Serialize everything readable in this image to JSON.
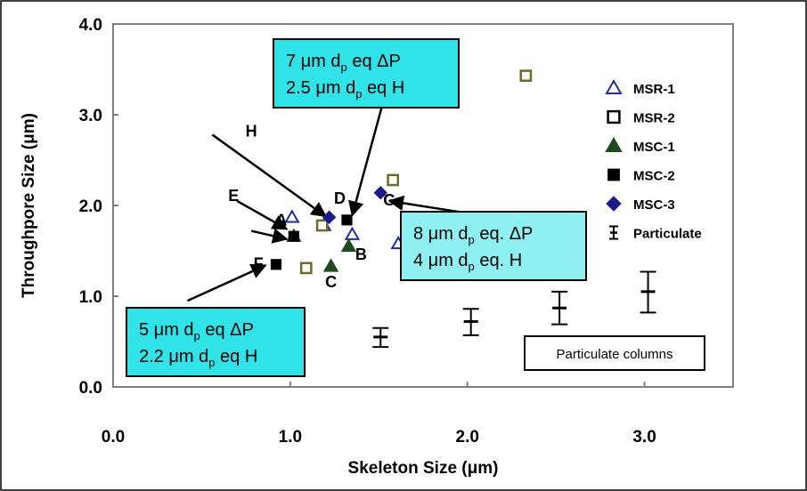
{
  "chart_data": {
    "type": "scatter",
    "xlabel": "Skeleton Size (μm)",
    "ylabel": "Throughpore Size (μm)",
    "xlim": [
      0,
      3.5
    ],
    "ylim": [
      0,
      4.0
    ],
    "x_ticks": [
      "0.0",
      "1.0",
      "2.0",
      "3.0"
    ],
    "y_ticks": [
      "0.0",
      "1.0",
      "2.0",
      "3.0",
      "4.0"
    ],
    "legend_position": "right",
    "series": [
      {
        "name": "MSR-1",
        "marker": "triangle-open",
        "color": "#1f2f9a",
        "points": [
          {
            "x": 1.01,
            "y": 1.87
          },
          {
            "x": 1.19,
            "y": 1.78
          },
          {
            "x": 1.35,
            "y": 1.68
          },
          {
            "x": 1.61,
            "y": 1.58
          }
        ]
      },
      {
        "name": "MSR-2",
        "marker": "square-open",
        "color": "#6b6b2a",
        "points": [
          {
            "x": 1.09,
            "y": 1.31
          },
          {
            "x": 1.18,
            "y": 1.78
          },
          {
            "x": 1.58,
            "y": 2.28
          },
          {
            "x": 2.33,
            "y": 3.43
          }
        ]
      },
      {
        "name": "MSC-1",
        "marker": "triangle-filled",
        "color": "#1f4a1f",
        "points": [
          {
            "x": 1.02,
            "y": 1.66
          },
          {
            "x": 1.23,
            "y": 1.33
          },
          {
            "x": 1.33,
            "y": 1.55
          }
        ]
      },
      {
        "name": "MSC-2",
        "marker": "square-filled",
        "color": "#000000",
        "points": [
          {
            "x": 0.92,
            "y": 1.35
          },
          {
            "x": 1.02,
            "y": 1.66
          },
          {
            "x": 1.32,
            "y": 1.84
          }
        ]
      },
      {
        "name": "MSC-3",
        "marker": "diamond-filled",
        "color": "#1a1a8a",
        "points": [
          {
            "x": 1.22,
            "y": 1.87
          },
          {
            "x": 1.51,
            "y": 2.14
          }
        ]
      },
      {
        "name": "Particulate",
        "marker": "errorbar",
        "color": "#000000",
        "points": [
          {
            "x": 1.51,
            "y": 0.55,
            "ylow": 0.44,
            "yhigh": 0.65
          },
          {
            "x": 2.02,
            "y": 0.72,
            "ylow": 0.57,
            "yhigh": 0.86
          },
          {
            "x": 2.52,
            "y": 0.87,
            "ylow": 0.69,
            "yhigh": 1.05
          },
          {
            "x": 3.02,
            "y": 1.05,
            "ylow": 0.82,
            "yhigh": 1.27
          }
        ]
      }
    ],
    "point_labels": [
      {
        "text": "A",
        "x": 0.95,
        "y": 1.78
      },
      {
        "text": "C",
        "x": 1.23,
        "y": 1.1
      },
      {
        "text": "D",
        "x": 1.28,
        "y": 2.02
      },
      {
        "text": "E",
        "x": 0.68,
        "y": 2.05
      },
      {
        "text": "F",
        "x": 0.82,
        "y": 1.3
      },
      {
        "text": "G",
        "x": 1.56,
        "y": 2.0
      },
      {
        "text": "H",
        "x": 0.78,
        "y": 2.76
      },
      {
        "text": "B",
        "x": 1.4,
        "y": 1.4
      }
    ],
    "annotation_boxes": [
      {
        "line1": "7 μm d",
        "sub1": "p",
        "tail1": " eq ΔP",
        "line2": "2.5 μm d",
        "sub2": "p",
        "tail2": " eq H",
        "fill": "#2fe3e8"
      },
      {
        "line1": "8 μm d",
        "sub1": "p",
        "tail1": " eq. ΔP",
        "line2": "4 μm d",
        "sub2": "p",
        "tail2": " eq. H",
        "fill": "#8ff0f2"
      },
      {
        "line1": "5 μm d",
        "sub1": "p",
        "tail1": " eq ΔP",
        "line2": "2.2 μm d",
        "sub2": "p",
        "tail2": " eq H",
        "fill": "#2fe3e8"
      }
    ],
    "note": "Particulate columns",
    "grid": false
  }
}
